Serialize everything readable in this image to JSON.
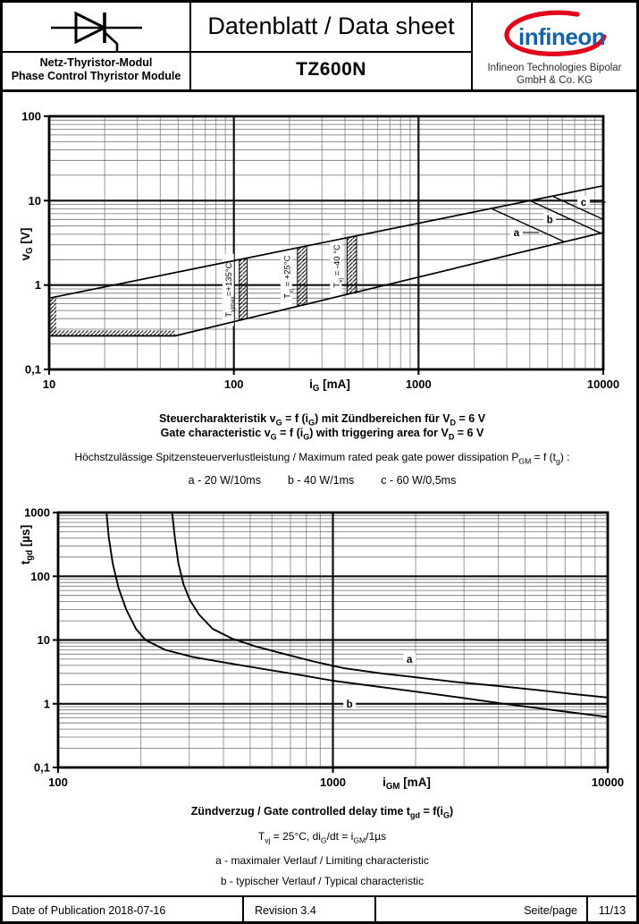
{
  "header": {
    "family_de": "Netz-Thyristor-Modul",
    "family_en": "Phase Control Thyristor Module",
    "doc_title": "Datenblatt / Data sheet",
    "part_number": "TZ600N",
    "logo_text": "infineon",
    "company_line1": "Infineon Technologies Bipolar",
    "company_line2": "GmbH & Co. KG",
    "logo_blue": "#1463A8",
    "logo_red": "#E2001A",
    "thyristor_icon": "thyristor-circuit-symbol"
  },
  "chart1_captions": {
    "title_de": "Steuercharakteristik v~G~ = f (i~G~) mit Zündbereichen für V~D~ = 6 V",
    "title_en": "Gate characteristic v~G~ = f (i~G~) with triggering area for V~D~ = 6 V",
    "subtitle": "Höchstzulässige Spitzensteuerverlustleistung / Maximum rated peak gate power dissipation P~GM~ = f (t~g~) :",
    "legend": [
      "a - 20 W/10ms",
      "b - 40 W/1ms",
      "c - 60 W/0,5ms"
    ]
  },
  "chart2_captions": {
    "title": "Zündverzug / Gate controlled delay time t~gd~ = f(i~G~)",
    "conditions": "T~vj~ = 25°C, di~G~/dt = i~GM~/1µs",
    "legend": [
      "a - maximaler Verlauf / Limiting characteristic",
      "b - typischer Verlauf / Typical characteristic"
    ]
  },
  "footer": {
    "date": "Date of Publication 2018-07-16",
    "revision": "Revision 3.4",
    "page_label": "Seite/page",
    "page_value": "11/13"
  },
  "chart_data": [
    {
      "type": "line",
      "title": "Steuercharakteristik / Gate characteristic with triggering area for VD = 6 V",
      "xlabel": "i~G~ [mA]",
      "ylabel": "v~G~ [V]",
      "xlim": [
        10,
        10000
      ],
      "ylim": [
        0.1,
        100
      ],
      "grid": true,
      "xticks": [
        {
          "v": 10,
          "label": "10"
        },
        {
          "v": 100,
          "label": "100"
        },
        {
          "v": 1000,
          "label": "1000"
        },
        {
          "v": 10000,
          "label": "10000"
        }
      ],
      "yticks": [
        {
          "v": 100,
          "label": "100"
        },
        {
          "v": 10,
          "label": "10"
        },
        {
          "v": 1,
          "label": "1"
        },
        {
          "v": 0.1,
          "label": "0,1"
        }
      ],
      "series": [
        {
          "name": "triggering-area-upper-limit",
          "points": [
            [
              10,
              0.7
            ],
            [
              10000,
              15
            ]
          ]
        },
        {
          "name": "triggering-area-lower-limit",
          "points": [
            [
              10,
              0.25
            ],
            [
              48,
              0.25
            ],
            [
              10000,
              4.2
            ]
          ]
        },
        {
          "name": "a: PGM = 20 W/10ms",
          "points": [
            [
              2477,
              8.07
            ],
            [
              6163,
              3.25
            ]
          ]
        },
        {
          "name": "b: PGM = 40 W/1ms",
          "points": [
            [
              4005,
              10.0
            ],
            [
              9685,
              4.13
            ]
          ]
        },
        {
          "name": "c: PGM = 60 W/0,5ms",
          "points": [
            [
              5312,
              11.3
            ],
            [
              10000,
              6.0
            ]
          ]
        }
      ],
      "hatch_bars": [
        {
          "label": "T~vjmax~=+135°C",
          "i1": 107,
          "i2": 118
        },
        {
          "label": "T~vj~ = +25°C",
          "i1": 221,
          "i2": 248
        },
        {
          "label": "T~vj~ = -40 °C",
          "i1": 410,
          "i2": 462
        }
      ],
      "edge_hatch": {
        "i": 10,
        "v1": 0.25,
        "v2": 0.7
      },
      "floor_hatch": {
        "v": 0.25,
        "i1": 10,
        "i2": 48
      },
      "curve_labels": [
        {
          "text": "a",
          "x": 3390,
          "y": 4.2
        },
        {
          "text": "b",
          "x": 5130,
          "y": 6.0
        },
        {
          "text": "c",
          "x": 7830,
          "y": 9.6
        }
      ]
    },
    {
      "type": "line",
      "title": "Zündverzug / Gate controlled delay time",
      "xlabel": "i~GM~ [mA]",
      "ylabel": "t~gd~ [µs]",
      "xlim": [
        100,
        10000
      ],
      "ylim": [
        0.1,
        1000
      ],
      "grid": true,
      "xticks": [
        {
          "v": 100,
          "label": "100"
        },
        {
          "v": 1000,
          "label": "1000"
        },
        {
          "v": 10000,
          "label": "10000"
        }
      ],
      "yticks": [
        {
          "v": 1000,
          "label": "1000"
        },
        {
          "v": 100,
          "label": "100"
        },
        {
          "v": 10,
          "label": "10"
        },
        {
          "v": 1,
          "label": "1"
        },
        {
          "v": 0.1,
          "label": "0,1"
        }
      ],
      "series": [
        {
          "name": "a - maximaler Verlauf / Limiting characteristic",
          "points": [
            [
              260,
              1000
            ],
            [
              266,
              400
            ],
            [
              274,
              160
            ],
            [
              286,
              75
            ],
            [
              302,
              42
            ],
            [
              326,
              25
            ],
            [
              365,
              15
            ],
            [
              430,
              10.5
            ],
            [
              520,
              8
            ],
            [
              650,
              6.2
            ],
            [
              850,
              4.6
            ],
            [
              1100,
              3.6
            ],
            [
              1500,
              3.0
            ],
            [
              2000,
              2.6
            ],
            [
              2800,
              2.2
            ],
            [
              4000,
              1.9
            ],
            [
              5500,
              1.65
            ],
            [
              7500,
              1.42
            ],
            [
              10000,
              1.25
            ]
          ]
        },
        {
          "name": "b - typischer Verlauf / Typical characteristic",
          "points": [
            [
              150,
              1000
            ],
            [
              153,
              400
            ],
            [
              158,
              160
            ],
            [
              166,
              65
            ],
            [
              177,
              30
            ],
            [
              192,
              15
            ],
            [
              208,
              10
            ],
            [
              245,
              7
            ],
            [
              310,
              5.4
            ],
            [
              420,
              4.3
            ],
            [
              560,
              3.5
            ],
            [
              750,
              2.85
            ],
            [
              1000,
              2.3
            ],
            [
              1400,
              1.9
            ],
            [
              2000,
              1.55
            ],
            [
              2900,
              1.25
            ],
            [
              4200,
              1.0
            ],
            [
              6000,
              0.82
            ],
            [
              8000,
              0.7
            ],
            [
              10000,
              0.62
            ]
          ]
        }
      ],
      "curve_labels": [
        {
          "text": "a",
          "x": 1900,
          "y": 5
        },
        {
          "text": "b",
          "x": 1150,
          "y": 1
        }
      ]
    }
  ]
}
